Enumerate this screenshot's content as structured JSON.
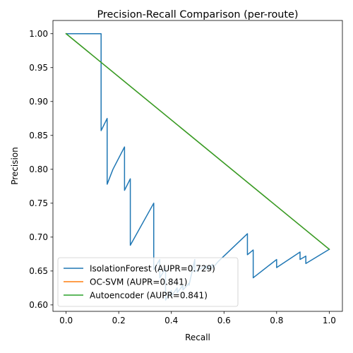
{
  "chart_data": {
    "type": "line",
    "title": "Precision-Recall Comparison (per-route)",
    "xlabel": "Recall",
    "ylabel": "Precision",
    "xlim": [
      -0.05,
      1.05
    ],
    "ylim": [
      0.5905,
      1.0195
    ],
    "xticks": [
      0.0,
      0.2,
      0.4,
      0.6,
      0.8,
      1.0
    ],
    "xtick_labels": [
      "0.0",
      "0.2",
      "0.4",
      "0.6",
      "0.8",
      "1.0"
    ],
    "yticks": [
      0.6,
      0.65,
      0.7,
      0.75,
      0.8,
      0.85,
      0.9,
      0.95,
      1.0
    ],
    "ytick_labels": [
      "0.60",
      "0.65",
      "0.70",
      "0.75",
      "0.80",
      "0.85",
      "0.90",
      "0.95",
      "1.00"
    ],
    "grid": false,
    "legend_position": "lower-left",
    "series": [
      {
        "name": "IsolationForest (AUPR=0.729)",
        "color": "#1f77b4",
        "x": [
          0.0,
          0.133,
          0.133,
          0.156,
          0.156,
          0.178,
          0.222,
          0.222,
          0.244,
          0.244,
          0.333,
          0.333,
          0.356,
          0.356,
          0.378,
          0.378,
          0.4,
          0.4,
          0.422,
          0.422,
          0.444,
          0.444,
          0.467,
          0.467,
          0.489,
          0.489,
          0.533,
          0.533,
          0.556,
          0.556,
          0.578,
          0.689,
          0.689,
          0.711,
          0.711,
          0.8,
          0.8,
          0.889,
          0.889,
          0.911,
          0.911,
          1.0
        ],
        "y": [
          1.0,
          1.0,
          0.857,
          0.875,
          0.778,
          0.8,
          0.833,
          0.769,
          0.786,
          0.688,
          0.75,
          0.652,
          0.667,
          0.64,
          0.654,
          0.607,
          0.621,
          0.613,
          0.625,
          0.618,
          0.629,
          0.622,
          0.632,
          0.629,
          0.667,
          0.649,
          0.658,
          0.652,
          0.66,
          0.654,
          0.664,
          0.705,
          0.674,
          0.681,
          0.64,
          0.667,
          0.655,
          0.678,
          0.667,
          0.672,
          0.661,
          0.682
        ]
      },
      {
        "name": "OC-SVM (AUPR=0.841)",
        "color": "#ff7f0e",
        "x": [
          0.0,
          1.0
        ],
        "y": [
          1.0,
          0.682
        ]
      },
      {
        "name": "Autoencoder (AUPR=0.841)",
        "color": "#2ca02c",
        "x": [
          0.0,
          1.0
        ],
        "y": [
          1.0,
          0.682
        ]
      }
    ]
  }
}
